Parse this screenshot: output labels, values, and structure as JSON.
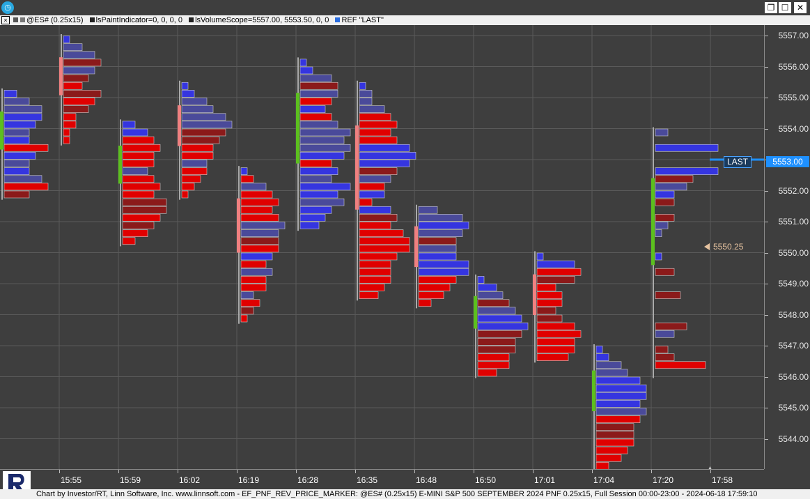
{
  "window": {
    "minimize_icon": "restore-icon",
    "restore_glyph": "❐",
    "maximize_glyph": "☐",
    "close_glyph": "✕"
  },
  "infobar": {
    "close_glyph": "×",
    "symbol": "@ES# (0.25x15)",
    "paint_indicator": "lsPaintIndicator=0, 0, 0, 0",
    "volume_scope": "lsVolumeScope=5557.00, 5553.50, 0, 0",
    "ref": "REF \"LAST\""
  },
  "price_axis": {
    "ticks": [
      "5557.00",
      "5556.00",
      "5555.00",
      "5554.00",
      "5553.00",
      "5552.00",
      "5551.00",
      "5550.00",
      "5549.00",
      "5548.00",
      "5547.00",
      "5546.00",
      "5545.00",
      "5544.00"
    ]
  },
  "time_axis": {
    "labels": [
      "15:55",
      "15:59",
      "16:02",
      "16:19",
      "16:28",
      "16:35",
      "16:48",
      "16:50",
      "17:01",
      "17:04",
      "17:20",
      "17:58"
    ]
  },
  "last": {
    "label": "LAST",
    "price": "5553.00",
    "color": "#1e90ff"
  },
  "ref_marker": {
    "price": "5550.25"
  },
  "footer": {
    "text": "Chart by Investor/RT, Linn Software, Inc. www.linnsoft.com - EF_PNF_REV_PRICE_MARKER: @ES# (0.25x15) E-MINI S&P 500 SEPTEMBER 2024 PNF 0.25x15, Full Session 00:00-23:00 - 2024-06-18 17:59:10"
  },
  "colors": {
    "bid_red": "#e00000",
    "dark_red": "#8b1a1a",
    "ask_blue": "#3535e0",
    "slate_blue": "#4a4a9a",
    "up_marker": "#5cc01e",
    "down_marker": "#f08080"
  },
  "chart_data": {
    "type": "bar",
    "price_tick": 0.25,
    "ylim": [
      5543.5,
      5557.25
    ],
    "columns": [
      {
        "time": "15:55",
        "col": 0,
        "top": 5555.25,
        "bottom": 5551.75,
        "dir": "up",
        "profile": [
          [
            2,
            0
          ],
          [
            4,
            1
          ],
          [
            6,
            1
          ],
          [
            6,
            0
          ],
          [
            5,
            0
          ],
          [
            4,
            1
          ],
          [
            4,
            0
          ],
          [
            7,
            2
          ],
          [
            5,
            0
          ],
          [
            4,
            1
          ],
          [
            4,
            0
          ],
          [
            6,
            1
          ],
          [
            7,
            2
          ],
          [
            4,
            3
          ]
        ]
      },
      {
        "time": "15:59",
        "col": 1,
        "top": 5557.0,
        "bottom": 5553.5,
        "dir": "down",
        "profile": [
          [
            1,
            0
          ],
          [
            3,
            1
          ],
          [
            5,
            1
          ],
          [
            6,
            3
          ],
          [
            5,
            1
          ],
          [
            4,
            3
          ],
          [
            3,
            2
          ],
          [
            6,
            3
          ],
          [
            5,
            2
          ],
          [
            4,
            3
          ],
          [
            2,
            2
          ],
          [
            2,
            2
          ],
          [
            1,
            2
          ],
          [
            1,
            2
          ]
        ]
      },
      {
        "time": "16:02",
        "col": 2,
        "top": 5554.25,
        "bottom": 5550.75,
        "dir": "up",
        "profile": [
          [
            2,
            0
          ],
          [
            4,
            0
          ],
          [
            5,
            2
          ],
          [
            6,
            2
          ],
          [
            5,
            2
          ],
          [
            5,
            2
          ],
          [
            4,
            1
          ],
          [
            5,
            2
          ],
          [
            6,
            2
          ],
          [
            5,
            2
          ],
          [
            7,
            3
          ],
          [
            7,
            3
          ],
          [
            6,
            2
          ],
          [
            5,
            3
          ],
          [
            4,
            2
          ],
          [
            2,
            2
          ]
        ]
      },
      {
        "time": "16:19",
        "col": 3,
        "top": 5555.5,
        "bottom": 5551.75,
        "dir": "down",
        "profile": [
          [
            1,
            0
          ],
          [
            2,
            0
          ],
          [
            4,
            1
          ],
          [
            5,
            1
          ],
          [
            7,
            1
          ],
          [
            8,
            1
          ],
          [
            7,
            3
          ],
          [
            6,
            3
          ],
          [
            5,
            2
          ],
          [
            5,
            2
          ],
          [
            4,
            1
          ],
          [
            4,
            2
          ],
          [
            3,
            2
          ],
          [
            2,
            2
          ],
          [
            1,
            2
          ]
        ]
      },
      {
        "time": "16:28",
        "col": 4,
        "top": 5552.75,
        "bottom": 5547.75,
        "dir": "down",
        "profile": [
          [
            1,
            0
          ],
          [
            2,
            2
          ],
          [
            4,
            1
          ],
          [
            5,
            2
          ],
          [
            6,
            2
          ],
          [
            5,
            2
          ],
          [
            6,
            2
          ],
          [
            7,
            1
          ],
          [
            6,
            1
          ],
          [
            6,
            3
          ],
          [
            6,
            2
          ],
          [
            5,
            0
          ],
          [
            4,
            2
          ],
          [
            5,
            1
          ],
          [
            4,
            2
          ],
          [
            4,
            2
          ],
          [
            2,
            1
          ],
          [
            3,
            2
          ],
          [
            2,
            3
          ],
          [
            1,
            2
          ]
        ]
      },
      {
        "time": "16:35",
        "col": 5,
        "top": 5556.25,
        "bottom": 5549.75,
        "dir": "up",
        "profile": [
          [
            1,
            0
          ],
          [
            2,
            0
          ],
          [
            5,
            1
          ],
          [
            6,
            3
          ],
          [
            6,
            1
          ],
          [
            5,
            2
          ],
          [
            4,
            0
          ],
          [
            5,
            2
          ],
          [
            6,
            1
          ],
          [
            8,
            1
          ],
          [
            7,
            1
          ],
          [
            8,
            1
          ],
          [
            7,
            0
          ],
          [
            5,
            2
          ],
          [
            6,
            0
          ],
          [
            5,
            1
          ],
          [
            8,
            0
          ],
          [
            6,
            0
          ],
          [
            7,
            1
          ],
          [
            5,
            0
          ],
          [
            4,
            0
          ],
          [
            3,
            0
          ]
        ]
      },
      {
        "time": "16:48",
        "col": 6,
        "top": 5555.5,
        "bottom": 5547.75,
        "dir": "down",
        "profile": [
          [
            1,
            0
          ],
          [
            2,
            1
          ],
          [
            2,
            1
          ],
          [
            4,
            1
          ],
          [
            5,
            2
          ],
          [
            6,
            2
          ],
          [
            5,
            2
          ],
          [
            6,
            2
          ],
          [
            8,
            0
          ],
          [
            9,
            0
          ],
          [
            8,
            0
          ],
          [
            6,
            3
          ],
          [
            5,
            1
          ],
          [
            4,
            2
          ],
          [
            4,
            0
          ],
          [
            2,
            2
          ],
          [
            5,
            0
          ],
          [
            6,
            3
          ],
          [
            5,
            2
          ],
          [
            7,
            2
          ],
          [
            8,
            2
          ],
          [
            8,
            2
          ],
          [
            6,
            2
          ],
          [
            5,
            2
          ],
          [
            5,
            2
          ],
          [
            5,
            2
          ],
          [
            4,
            2
          ],
          [
            3,
            2
          ]
        ]
      },
      {
        "time": "16:50",
        "col": 7,
        "top": 5551.5,
        "bottom": 5547.75,
        "dir": "down",
        "profile": [
          [
            3,
            1
          ],
          [
            7,
            1
          ],
          [
            8,
            0
          ],
          [
            7,
            1
          ],
          [
            6,
            3
          ],
          [
            6,
            1
          ],
          [
            6,
            0
          ],
          [
            8,
            0
          ],
          [
            8,
            0
          ],
          [
            6,
            2
          ],
          [
            5,
            2
          ],
          [
            4,
            2
          ],
          [
            2,
            2
          ]
        ]
      },
      {
        "time": "17:01",
        "col": 8,
        "top": 5549.25,
        "bottom": 5546.25,
        "dir": "up",
        "profile": [
          [
            1,
            0
          ],
          [
            3,
            0
          ],
          [
            4,
            1
          ],
          [
            5,
            3
          ],
          [
            6,
            1
          ],
          [
            7,
            0
          ],
          [
            8,
            0
          ],
          [
            7,
            3
          ],
          [
            6,
            3
          ],
          [
            6,
            3
          ],
          [
            5,
            2
          ],
          [
            5,
            2
          ],
          [
            3,
            2
          ]
        ]
      },
      {
        "time": "17:04",
        "col": 9,
        "top": 5550.0,
        "bottom": 5546.25,
        "dir": "down",
        "profile": [
          [
            1,
            0
          ],
          [
            6,
            0
          ],
          [
            7,
            2
          ],
          [
            6,
            3
          ],
          [
            3,
            2
          ],
          [
            4,
            2
          ],
          [
            4,
            2
          ],
          [
            3,
            3
          ],
          [
            4,
            3
          ],
          [
            6,
            2
          ],
          [
            7,
            2
          ],
          [
            6,
            2
          ],
          [
            6,
            2
          ],
          [
            5,
            2
          ]
        ]
      },
      {
        "time": "17:20",
        "col": 10,
        "top": 5547.0,
        "bottom": 5543.25,
        "dir": "up",
        "profile": [
          [
            1,
            0
          ],
          [
            2,
            0
          ],
          [
            4,
            1
          ],
          [
            5,
            1
          ],
          [
            7,
            0
          ],
          [
            8,
            0
          ],
          [
            8,
            0
          ],
          [
            7,
            0
          ],
          [
            8,
            1
          ],
          [
            7,
            2
          ],
          [
            6,
            3
          ],
          [
            6,
            3
          ],
          [
            6,
            2
          ],
          [
            5,
            2
          ],
          [
            4,
            2
          ],
          [
            2,
            2
          ]
        ]
      },
      {
        "time": "17:58",
        "col": 11,
        "top": 5554.0,
        "bottom": 5546.0,
        "dir": "up",
        "profile": [
          [
            2,
            1
          ],
          [
            0,
            0
          ],
          [
            10,
            0
          ],
          [
            0,
            0
          ],
          [
            0,
            0
          ],
          [
            10,
            0
          ],
          [
            6,
            3
          ],
          [
            5,
            1
          ],
          [
            3,
            0
          ],
          [
            3,
            3
          ],
          [
            0,
            0
          ],
          [
            3,
            3
          ],
          [
            2,
            1
          ],
          [
            1,
            1
          ],
          [
            0,
            0
          ],
          [
            0,
            0
          ],
          [
            1,
            0
          ],
          [
            0,
            0
          ],
          [
            3,
            3
          ],
          [
            0,
            0
          ],
          [
            0,
            0
          ],
          [
            4,
            3
          ],
          [
            0,
            0
          ],
          [
            0,
            0
          ],
          [
            0,
            0
          ],
          [
            5,
            3
          ],
          [
            3,
            1
          ],
          [
            0,
            0
          ],
          [
            2,
            3
          ],
          [
            3,
            3
          ],
          [
            8,
            2
          ],
          [
            0,
            0
          ]
        ]
      }
    ]
  }
}
